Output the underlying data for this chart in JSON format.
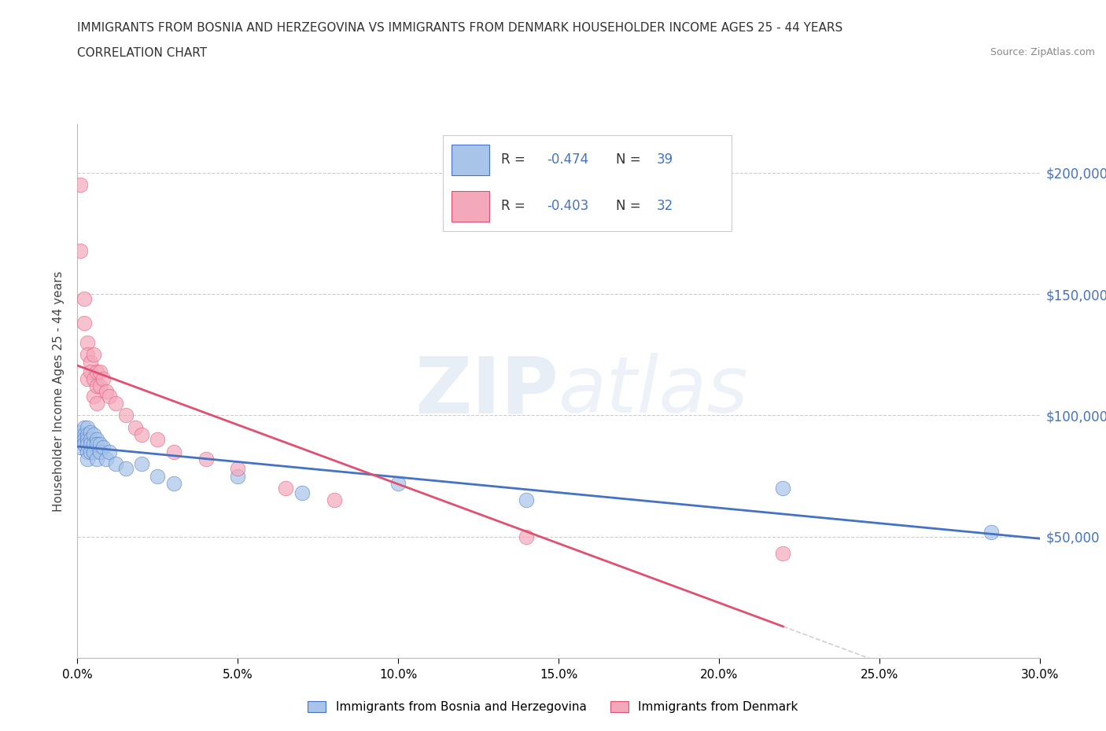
{
  "title_line1": "IMMIGRANTS FROM BOSNIA AND HERZEGOVINA VS IMMIGRANTS FROM DENMARK HOUSEHOLDER INCOME AGES 25 - 44 YEARS",
  "title_line2": "CORRELATION CHART",
  "source_text": "Source: ZipAtlas.com",
  "ylabel": "Householder Income Ages 25 - 44 years",
  "watermark_zip": "ZIP",
  "watermark_atlas": "atlas",
  "legend_label1": "Immigrants from Bosnia and Herzegovina",
  "legend_label2": "Immigrants from Denmark",
  "R1": -0.474,
  "N1": 39,
  "R2": -0.403,
  "N2": 32,
  "color_bosnia": "#a8c4e8",
  "color_denmark": "#f4a8bc",
  "line_color_bosnia": "#4472c4",
  "line_color_denmark": "#e05070",
  "r_n_color": "#4472c4",
  "xlim": [
    0.0,
    0.3
  ],
  "ylim": [
    0,
    220000
  ],
  "yticks": [
    0,
    50000,
    100000,
    150000,
    200000
  ],
  "xticks": [
    0.0,
    0.05,
    0.1,
    0.15,
    0.2,
    0.25,
    0.3
  ],
  "bosnia_x": [
    0.001,
    0.001,
    0.001,
    0.002,
    0.002,
    0.002,
    0.002,
    0.003,
    0.003,
    0.003,
    0.003,
    0.003,
    0.003,
    0.004,
    0.004,
    0.004,
    0.004,
    0.005,
    0.005,
    0.005,
    0.006,
    0.006,
    0.006,
    0.007,
    0.007,
    0.008,
    0.009,
    0.01,
    0.012,
    0.015,
    0.02,
    0.025,
    0.03,
    0.05,
    0.07,
    0.1,
    0.14,
    0.22,
    0.285
  ],
  "bosnia_y": [
    93000,
    90000,
    87000,
    95000,
    92000,
    90000,
    88000,
    95000,
    92000,
    90000,
    88000,
    85000,
    82000,
    93000,
    90000,
    88000,
    85000,
    92000,
    88000,
    85000,
    90000,
    88000,
    82000,
    88000,
    85000,
    87000,
    82000,
    85000,
    80000,
    78000,
    80000,
    75000,
    72000,
    75000,
    68000,
    72000,
    65000,
    70000,
    52000
  ],
  "denmark_x": [
    0.001,
    0.001,
    0.002,
    0.002,
    0.003,
    0.003,
    0.003,
    0.004,
    0.004,
    0.005,
    0.005,
    0.005,
    0.006,
    0.006,
    0.006,
    0.007,
    0.007,
    0.008,
    0.009,
    0.01,
    0.012,
    0.015,
    0.018,
    0.02,
    0.025,
    0.03,
    0.04,
    0.05,
    0.065,
    0.08,
    0.14,
    0.22
  ],
  "denmark_y": [
    195000,
    168000,
    148000,
    138000,
    130000,
    125000,
    115000,
    122000,
    118000,
    125000,
    115000,
    108000,
    118000,
    112000,
    105000,
    118000,
    112000,
    115000,
    110000,
    108000,
    105000,
    100000,
    95000,
    92000,
    90000,
    85000,
    82000,
    78000,
    70000,
    65000,
    50000,
    43000
  ]
}
